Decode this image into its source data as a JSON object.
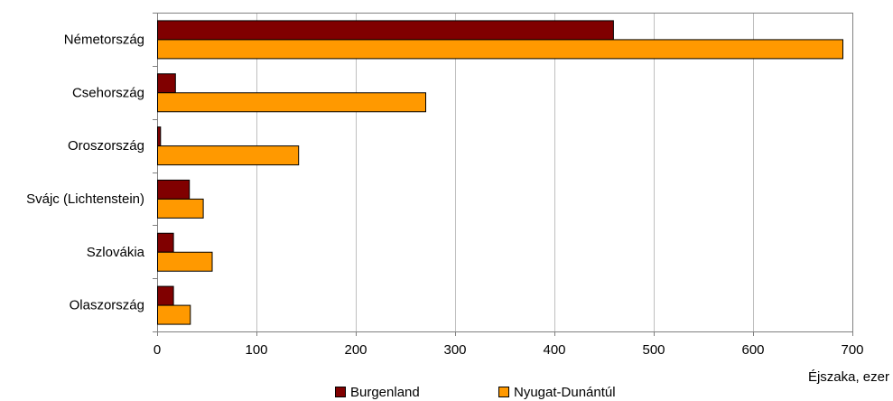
{
  "chart_data": {
    "type": "bar",
    "orientation": "horizontal",
    "categories": [
      "Németország",
      "Csehország",
      "Oroszország",
      "Svájc (Lichtenstein)",
      "Szlovákia",
      "Olaszország"
    ],
    "series": [
      {
        "name": "Burgenland",
        "color": "#800000",
        "values": [
          459,
          18,
          3,
          32,
          16,
          16
        ]
      },
      {
        "name": "Nyugat-Dunántúl",
        "color": "#FF9900",
        "values": [
          690,
          270,
          142,
          46,
          55,
          33
        ]
      }
    ],
    "xlabel": "Éjszaka, ezer",
    "xlim": [
      0,
      700
    ],
    "xticks": [
      0,
      100,
      200,
      300,
      400,
      500,
      600,
      700
    ],
    "grid": true,
    "legend_position": "bottom"
  }
}
